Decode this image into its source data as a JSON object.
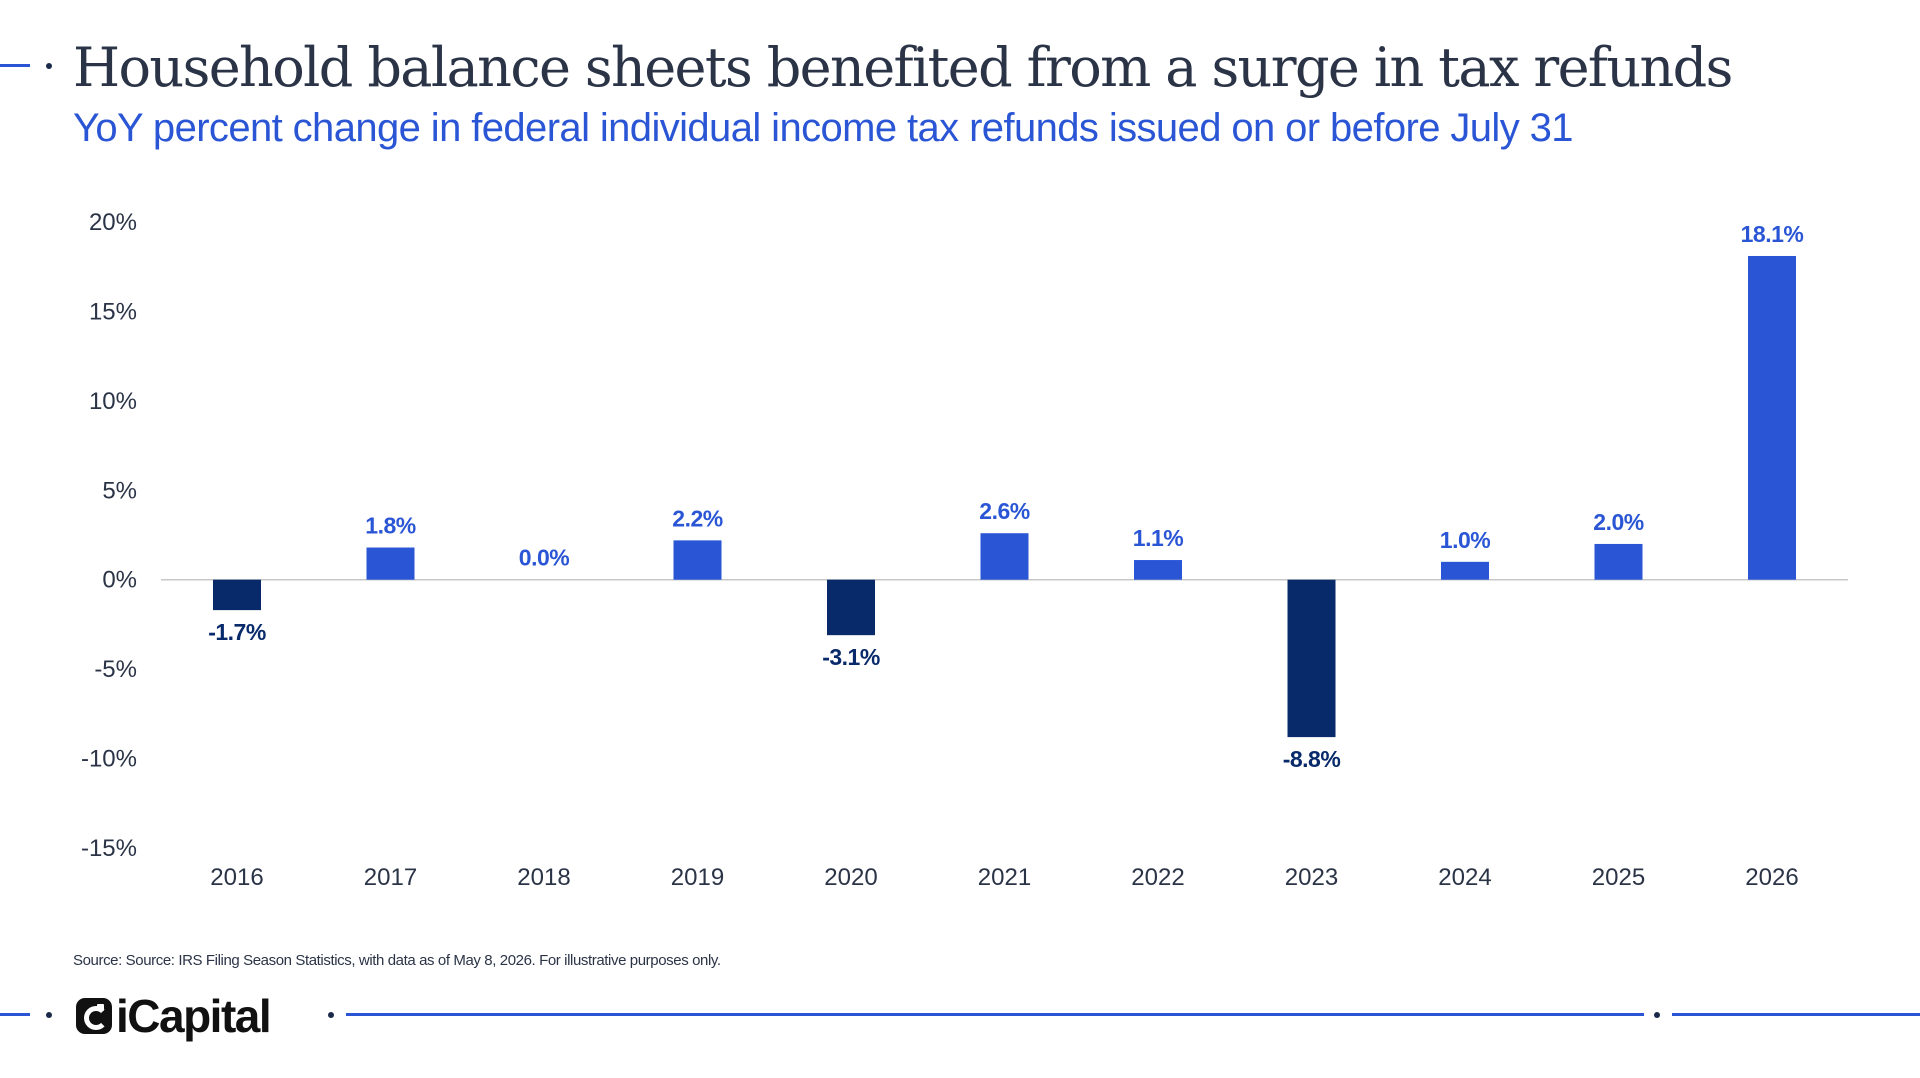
{
  "header": {
    "title": "Household balance sheets benefited from a surge in tax refunds",
    "subtitle": "YoY percent change in federal individual income tax refunds issued on or before July 31"
  },
  "footer": {
    "source": "Source: Source: IRS Filing Season Statistics, with data as of May 8, 2026. For illustrative purposes only.",
    "logo_text": "iCapital"
  },
  "colors": {
    "positive": "#2a56d6",
    "negative": "#082a6b",
    "title": "#2b3447",
    "subtitle": "#2a56d6",
    "axis_text": "#2b3447",
    "zero_line": "#c8c8c8"
  },
  "chart_data": {
    "type": "bar",
    "title": "Household balance sheets benefited from a surge in tax refunds",
    "subtitle": "YoY percent change in federal individual income tax refunds issued on or before July 31",
    "xlabel": "",
    "ylabel": "",
    "categories": [
      "2016",
      "2017",
      "2018",
      "2019",
      "2020",
      "2021",
      "2022",
      "2023",
      "2024",
      "2025",
      "2026"
    ],
    "values": [
      -1.7,
      1.8,
      0.0,
      2.2,
      -3.1,
      2.6,
      1.1,
      -8.8,
      1.0,
      2.0,
      18.1
    ],
    "data_labels": [
      "-1.7%",
      "1.8%",
      "0.0%",
      "2.2%",
      "-3.1%",
      "2.6%",
      "1.1%",
      "-8.8%",
      "1.0%",
      "2.0%",
      "18.1%"
    ],
    "ylim": [
      -15,
      20
    ],
    "yticks": [
      20,
      15,
      10,
      5,
      0,
      -5,
      -10,
      -15
    ],
    "ytick_labels": [
      "20%",
      "15%",
      "10%",
      "5%",
      "0%",
      "-5%",
      "-10%",
      "-15%"
    ],
    "grid": false,
    "legend": "none"
  }
}
